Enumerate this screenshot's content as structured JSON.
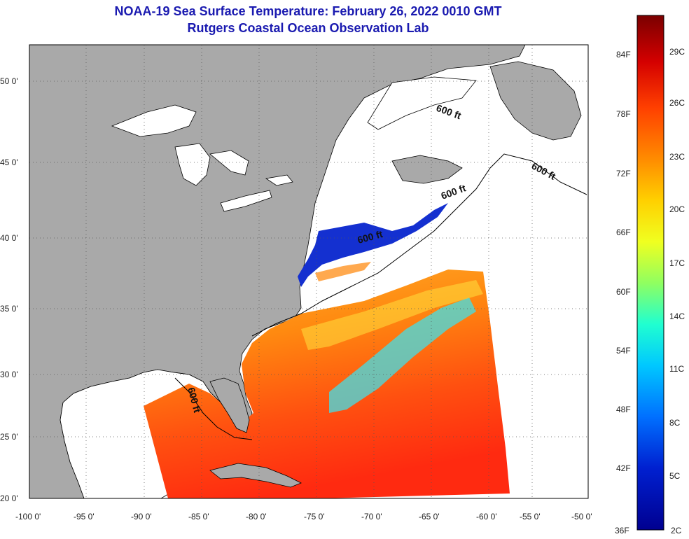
{
  "header": {
    "title": "NOAA-19 Sea Surface Temperature:  February 26, 2022 0010 GMT",
    "subtitle": "Rutgers Coastal Ocean Observation Lab"
  },
  "map": {
    "lat_labels": [
      "50 0'",
      "45 0'",
      "40 0'",
      "35 0'",
      "30 0'",
      "25 0'",
      "20 0'"
    ],
    "lon_labels": [
      "-100 0'",
      "-95 0'",
      "-90 0'",
      "-85 0'",
      "-80 0'",
      "-75 0'",
      "-70 0'",
      "-65 0'",
      "-60 0'",
      "-55 0'",
      "-50 0'"
    ],
    "isobath_labels": [
      "600 ft",
      "600 ft",
      "600 ft",
      "600 ft",
      "600 ft"
    ],
    "colors": {
      "land": "#a9a9a9",
      "no_data": "#ffffff",
      "coast": "#000000"
    }
  },
  "colorbar": {
    "fahrenheit_labels": [
      "84F",
      "78F",
      "72F",
      "66F",
      "60F",
      "54F",
      "48F",
      "42F",
      "36F"
    ],
    "celsius_labels": [
      "29C",
      "26C",
      "23C",
      "20C",
      "17C",
      "14C",
      "11C",
      "8C",
      "5C",
      "2C"
    ],
    "gradient": [
      "#7a0000",
      "#d40000",
      "#ff4000",
      "#ff8c00",
      "#ffd000",
      "#f0ff20",
      "#90ff60",
      "#20ffd0",
      "#00c8ff",
      "#0070ff",
      "#0020d0",
      "#000090"
    ]
  }
}
